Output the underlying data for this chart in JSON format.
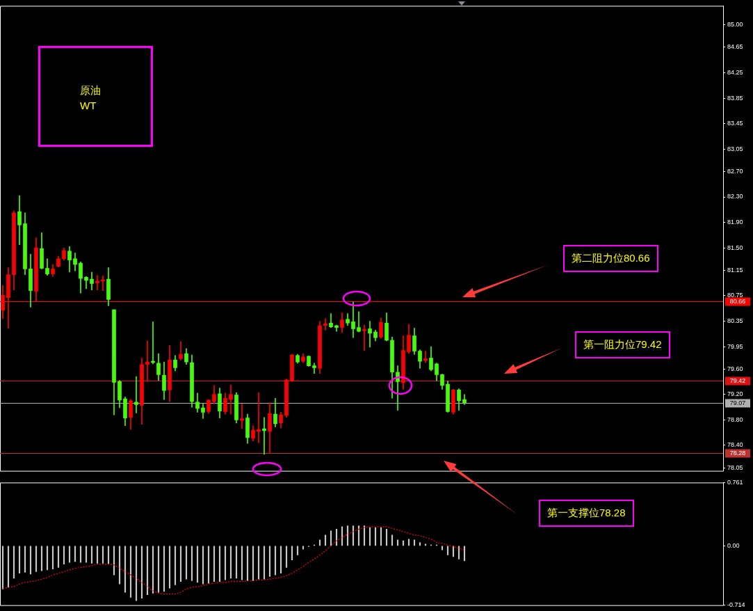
{
  "chart_data": [
    {
      "type": "candlestick",
      "title": "原油\nWT",
      "categories": [
        null,
        null,
        null,
        null,
        null,
        null,
        null,
        null,
        null,
        null,
        null,
        null,
        null,
        null,
        null,
        null,
        null,
        null,
        null,
        null,
        null,
        null,
        null,
        null,
        null,
        null,
        null,
        null,
        null,
        null,
        null,
        null,
        null,
        null,
        null,
        null,
        null,
        null,
        null,
        null,
        null,
        null,
        null,
        null,
        null,
        null,
        null,
        null,
        null,
        null,
        null,
        null,
        null,
        null,
        null,
        null,
        null,
        null,
        null,
        null,
        null,
        null,
        null,
        null,
        null,
        null,
        null,
        null,
        null,
        null,
        null,
        null,
        null,
        null,
        null,
        null,
        null,
        null,
        null,
        null,
        null,
        null,
        null,
        null,
        null,
        null,
        null,
        null,
        null,
        null,
        null,
        null,
        null,
        null,
        null,
        null,
        null,
        null,
        null,
        null,
        null,
        null,
        null,
        null,
        null,
        null,
        null,
        null,
        null,
        null,
        null,
        null,
        null,
        null,
        null,
        null,
        null,
        null,
        null,
        null,
        null,
        null,
        null,
        null,
        null,
        null,
        null,
        null,
        null,
        null
      ],
      "ohlc": [
        [
          80.52,
          80.91,
          80.39,
          80.76
        ],
        [
          80.72,
          81.19,
          80.24,
          81.08
        ],
        [
          81.08,
          82.08,
          80.84,
          82.05
        ],
        [
          82.07,
          82.32,
          81.55,
          81.86
        ],
        [
          81.88,
          82.05,
          81.08,
          81.17
        ],
        [
          81.17,
          81.4,
          80.57,
          80.83
        ],
        [
          80.82,
          81.66,
          80.66,
          81.5
        ],
        [
          81.49,
          81.74,
          81.17,
          81.18
        ],
        [
          81.18,
          81.33,
          81.07,
          81.09
        ],
        [
          81.09,
          81.24,
          81.05,
          81.17
        ],
        [
          81.21,
          81.37,
          81.2,
          81.33
        ],
        [
          81.33,
          81.5,
          81.31,
          81.46
        ],
        [
          81.45,
          81.52,
          81.12,
          81.31
        ],
        [
          81.33,
          81.42,
          81.14,
          81.24
        ],
        [
          81.26,
          81.28,
          80.79,
          81.02
        ],
        [
          81.04,
          81.05,
          80.86,
          80.99
        ],
        [
          81.01,
          81.12,
          80.84,
          80.94
        ],
        [
          80.95,
          81.07,
          80.84,
          80.98
        ],
        [
          80.98,
          81.06,
          80.83,
          81.0
        ],
        [
          81.01,
          81.19,
          80.59,
          80.69
        ],
        [
          80.53,
          80.53,
          78.88,
          79.39
        ],
        [
          79.4,
          79.42,
          78.99,
          79.11
        ],
        [
          79.13,
          79.16,
          78.71,
          78.83
        ],
        [
          78.84,
          79.12,
          78.65,
          79.1
        ],
        [
          79.08,
          79.48,
          78.91,
          79.04
        ],
        [
          79.03,
          79.77,
          78.73,
          79.67
        ],
        [
          79.67,
          80.04,
          79.4,
          79.71
        ],
        [
          79.72,
          80.34,
          79.68,
          79.7
        ],
        [
          79.69,
          79.84,
          79.42,
          79.51
        ],
        [
          79.5,
          79.71,
          79.12,
          79.26
        ],
        [
          79.27,
          79.97,
          79.09,
          79.74
        ],
        [
          79.74,
          79.81,
          79.57,
          79.62
        ],
        [
          79.76,
          80.03,
          79.74,
          79.83
        ],
        [
          79.84,
          79.92,
          79.67,
          79.71
        ],
        [
          79.7,
          79.82,
          79.0,
          79.09
        ],
        [
          79.08,
          79.22,
          78.92,
          78.98
        ],
        [
          78.99,
          79.05,
          78.82,
          78.92
        ],
        [
          78.93,
          79.12,
          78.9,
          79.11
        ],
        [
          79.09,
          79.34,
          79.05,
          79.2
        ],
        [
          79.21,
          79.3,
          78.83,
          78.94
        ],
        [
          78.93,
          79.22,
          78.89,
          79.14
        ],
        [
          79.12,
          79.35,
          78.89,
          79.2
        ],
        [
          79.19,
          79.23,
          78.75,
          78.8
        ],
        [
          78.79,
          79.05,
          78.66,
          78.82
        ],
        [
          78.83,
          78.89,
          78.43,
          78.52
        ],
        [
          78.51,
          78.71,
          78.47,
          78.64
        ],
        [
          78.62,
          79.23,
          78.44,
          78.65
        ],
        [
          78.66,
          78.84,
          78.26,
          78.63
        ],
        [
          78.62,
          79.07,
          78.28,
          78.9
        ],
        [
          78.89,
          79.14,
          78.69,
          78.74
        ],
        [
          78.75,
          78.92,
          78.67,
          78.88
        ],
        [
          78.87,
          79.44,
          78.84,
          79.43
        ],
        [
          79.42,
          79.83,
          79.4,
          79.82
        ],
        [
          79.81,
          79.83,
          79.69,
          79.71
        ],
        [
          79.72,
          79.84,
          79.7,
          79.79
        ],
        [
          79.8,
          79.8,
          79.64,
          79.65
        ],
        [
          79.65,
          79.69,
          79.53,
          79.62
        ],
        [
          79.61,
          80.35,
          79.53,
          80.28
        ],
        [
          80.28,
          80.39,
          80.21,
          80.31
        ],
        [
          80.32,
          80.47,
          80.25,
          80.26
        ],
        [
          80.28,
          80.29,
          80.19,
          80.25
        ],
        [
          80.25,
          80.48,
          80.17,
          80.37
        ],
        [
          80.38,
          80.47,
          80.28,
          80.32
        ],
        [
          80.34,
          80.65,
          80.09,
          80.23
        ],
        [
          80.25,
          80.5,
          80.18,
          80.19
        ],
        [
          80.2,
          80.29,
          79.89,
          80.22
        ],
        [
          80.23,
          80.35,
          79.94,
          80.16
        ],
        [
          80.18,
          80.21,
          80.04,
          80.09
        ],
        [
          80.1,
          80.4,
          80.08,
          80.33
        ],
        [
          80.32,
          80.48,
          80.04,
          80.05
        ],
        [
          80.05,
          80.1,
          79.14,
          79.55
        ],
        [
          79.55,
          79.65,
          78.95,
          79.4
        ],
        [
          79.38,
          80.12,
          79.28,
          79.89
        ],
        [
          79.87,
          80.3,
          79.84,
          80.13
        ],
        [
          80.12,
          80.24,
          79.83,
          79.88
        ],
        [
          79.88,
          79.9,
          79.61,
          79.72
        ],
        [
          79.73,
          79.88,
          79.7,
          79.76
        ],
        [
          79.77,
          79.95,
          79.57,
          79.59
        ],
        [
          79.68,
          79.69,
          79.41,
          79.51
        ],
        [
          79.51,
          79.52,
          79.28,
          79.34
        ],
        [
          79.36,
          79.41,
          78.92,
          78.93
        ],
        [
          78.92,
          79.28,
          78.89,
          79.27
        ],
        [
          79.27,
          79.29,
          78.95,
          79.1
        ],
        [
          79.12,
          79.2,
          79.04,
          79.07
        ],
        null,
        null,
        null,
        null,
        null,
        null,
        null,
        null,
        null,
        null,
        null,
        null,
        null,
        null,
        null,
        null,
        null,
        null,
        null,
        null,
        null,
        null,
        null,
        null,
        null,
        null,
        null,
        null,
        null,
        null,
        null,
        null,
        null,
        null,
        null,
        null,
        null,
        null,
        null,
        null,
        null,
        null,
        null,
        null,
        null,
        null
      ],
      "colors": [
        "#ff0000",
        "#ff0000",
        "#ff0000",
        "#44ff00",
        "#44ff00",
        "#44ff00",
        "#ff0000",
        "#44ff00",
        "#44ff00",
        "#ff0000",
        "#ff0000",
        "#ff0000",
        "#44ff00",
        "#44ff00",
        "#44ff00",
        "#44ff00",
        "#44ff00",
        "#ff0000",
        "#ff0000",
        "#44ff00",
        "#44ff00",
        "#44ff00",
        "#44ff00",
        "#ff0000",
        "#44ff00",
        "#ff0000",
        "#ff0000",
        "#44ff00",
        "#44ff00",
        "#44ff00",
        "#ff0000",
        "#44ff00",
        "#ff0000",
        "#44ff00",
        "#44ff00",
        "#44ff00",
        "#44ff00",
        "#ff0000",
        "#ff0000",
        "#44ff00",
        "#ff0000",
        "#ff0000",
        "#44ff00",
        "#ff0000",
        "#44ff00",
        "#ff0000",
        "#ff0000",
        "#44ff00",
        "#ff0000",
        "#44ff00",
        "#ff0000",
        "#ff0000",
        "#ff0000",
        "#44ff00",
        "#ff0000",
        "#44ff00",
        "#44ff00",
        "#ff0000",
        "#ff0000",
        "#44ff00",
        "#44ff00",
        "#ff0000",
        "#44ff00",
        "#44ff00",
        "#44ff00",
        "#ff0000",
        "#44ff00",
        "#44ff00",
        "#ff0000",
        "#44ff00",
        "#44ff00",
        "#44ff00",
        "#ff0000",
        "#ff0000",
        "#44ff00",
        "#44ff00",
        "#ff0000",
        "#44ff00",
        "#44ff00",
        "#44ff00",
        "#44ff00",
        "#ff0000",
        "#44ff00",
        "#44ff00",
        null,
        null,
        null,
        null,
        null,
        null,
        null,
        null,
        null,
        null,
        null,
        null,
        null,
        null,
        null,
        null,
        null,
        null,
        null,
        null,
        null,
        null,
        null,
        null,
        null,
        null,
        null,
        null,
        null,
        null,
        null,
        null,
        null,
        null,
        null,
        null,
        null,
        null,
        null,
        null,
        null,
        null,
        null,
        null,
        null,
        null
      ],
      "ylim": [
        78.0,
        85.3
      ],
      "yticks": [
        {
          "value": 85,
          "label": "85.00"
        },
        84.65,
        84.25,
        83.85,
        83.45,
        83.05,
        {
          "value": 82.7,
          "label": "82.70"
        },
        {
          "value": 82.3,
          "label": "82.30"
        },
        {
          "value": 81.9,
          "label": "81.90"
        },
        {
          "value": 81.5,
          "label": "81.50"
        },
        81.15,
        80.75,
        80.35,
        79.95,
        {
          "value": 79.6,
          "label": "79.60"
        },
        {
          "value": 79.2,
          "label": "79.20"
        },
        {
          "value": 78.8,
          "label": "78.80"
        },
        {
          "value": 78.4,
          "label": "78.40"
        },
        78.05
      ],
      "tick_labels": "y",
      "ref_lines": [
        {
          "axis": "y",
          "value": 80.66,
          "label": "80.66",
          "color": "#ff0000"
        },
        {
          "axis": "y",
          "value": 79.42,
          "label": "79.42",
          "color": "#e01010"
        },
        {
          "axis": "y",
          "value": 79.07,
          "label": "79.07",
          "color": "#b0b0b0"
        },
        {
          "axis": "y",
          "value": 78.28,
          "label": "78.28",
          "color": "#c03030"
        }
      ],
      "annotations": [
        "第二阻力位80.66",
        "第一阻力位79.42",
        "第一支撑位78.28"
      ]
    },
    {
      "type": "bar",
      "categories": [
        null,
        null,
        null,
        null,
        null,
        null,
        null,
        null,
        null,
        null,
        null,
        null,
        null,
        null,
        null,
        null,
        null,
        null,
        null,
        null,
        null,
        null,
        null,
        null,
        null,
        null,
        null,
        null,
        null,
        null,
        null,
        null,
        null,
        null,
        null,
        null,
        null,
        null,
        null,
        null,
        null,
        null,
        null,
        null,
        null,
        null,
        null,
        null,
        null,
        null,
        null,
        null,
        null,
        null,
        null,
        null,
        null,
        null,
        null,
        null,
        null,
        null,
        null,
        null,
        null,
        null,
        null,
        null,
        null,
        null,
        null,
        null,
        null,
        null,
        null,
        null,
        null,
        null,
        null,
        null,
        null,
        null,
        null,
        null,
        null,
        null,
        null,
        null,
        null,
        null,
        null,
        null,
        null,
        null,
        null,
        null,
        null,
        null,
        null,
        null,
        null,
        null,
        null,
        null,
        null,
        null,
        null,
        null,
        null,
        null,
        null,
        null,
        null,
        null,
        null,
        null,
        null,
        null,
        null,
        null,
        null,
        null,
        null,
        null,
        null,
        null,
        null,
        null,
        null,
        null
      ],
      "series": [
        {
          "type": "bar",
          "color": "#c8c8c8",
          "values": [
            -0.52,
            -0.5,
            -0.39,
            -0.33,
            -0.32,
            -0.34,
            -0.31,
            -0.3,
            -0.29,
            -0.28,
            -0.26,
            -0.22,
            -0.2,
            -0.19,
            -0.2,
            -0.2,
            -0.21,
            -0.21,
            -0.21,
            -0.22,
            -0.35,
            -0.46,
            -0.56,
            -0.62,
            -0.66,
            -0.63,
            -0.59,
            -0.57,
            -0.56,
            -0.55,
            -0.51,
            -0.47,
            -0.43,
            -0.4,
            -0.42,
            -0.44,
            -0.46,
            -0.45,
            -0.43,
            -0.43,
            -0.41,
            -0.39,
            -0.39,
            -0.41,
            -0.42,
            -0.42,
            -0.4,
            -0.4,
            -0.37,
            -0.35,
            -0.33,
            -0.26,
            -0.17,
            -0.11,
            -0.04,
            -0.01,
            0.01,
            0.07,
            0.13,
            0.18,
            0.2,
            0.23,
            0.24,
            0.24,
            0.24,
            0.24,
            0.22,
            0.22,
            0.22,
            0.2,
            0.13,
            0.07,
            0.06,
            0.08,
            0.07,
            0.04,
            0.02,
            0.01,
            0.01,
            -0.05,
            -0.11,
            -0.13,
            -0.16,
            -0.18,
            null,
            null,
            null,
            null,
            null,
            null,
            null,
            null,
            null,
            null,
            null,
            null,
            null,
            null,
            null,
            null,
            null,
            null,
            null,
            null,
            null,
            null,
            null,
            null,
            null,
            null,
            null,
            null,
            null,
            null,
            null,
            null,
            null,
            null,
            null,
            null,
            null,
            null,
            null,
            null,
            null,
            null,
            null,
            null,
            null,
            null
          ]
        },
        {
          "type": "line",
          "color": "#ff0000",
          "line_style": "dotted",
          "values": [
            -0.51,
            -0.5,
            -0.49,
            -0.46,
            -0.44,
            -0.43,
            -0.42,
            -0.4,
            -0.38,
            -0.35,
            -0.33,
            -0.31,
            -0.29,
            -0.27,
            -0.26,
            -0.25,
            -0.24,
            -0.22,
            -0.22,
            -0.22,
            -0.23,
            -0.27,
            -0.31,
            -0.35,
            -0.39,
            -0.44,
            -0.49,
            -0.54,
            -0.57,
            -0.58,
            -0.58,
            -0.58,
            -0.56,
            -0.52,
            -0.5,
            -0.49,
            -0.48,
            -0.46,
            -0.45,
            -0.44,
            -0.44,
            -0.43,
            -0.43,
            -0.43,
            -0.42,
            -0.42,
            -0.41,
            -0.41,
            -0.4,
            -0.39,
            -0.38,
            -0.36,
            -0.33,
            -0.29,
            -0.25,
            -0.2,
            -0.16,
            -0.11,
            -0.06,
            0.0,
            0.06,
            0.1,
            0.14,
            0.17,
            0.2,
            0.22,
            0.23,
            0.23,
            0.23,
            0.23,
            0.21,
            0.19,
            0.17,
            0.15,
            0.13,
            0.12,
            0.1,
            0.08,
            0.04,
            0.03,
            0.01,
            -0.01,
            -0.03,
            -0.05,
            null,
            null,
            null,
            null,
            null,
            null,
            null,
            null,
            null,
            null,
            null,
            null,
            null,
            null,
            null,
            null,
            null,
            null,
            null,
            null,
            null,
            null,
            null,
            null,
            null,
            null,
            null,
            null,
            null,
            null,
            null,
            null,
            null,
            null,
            null,
            null,
            null,
            null,
            null,
            null,
            null,
            null,
            null,
            null,
            null,
            null
          ]
        }
      ],
      "ylim": [
        -0.714,
        0.761
      ],
      "yticks": [
        0.761,
        {
          "value": 0,
          "label": "0.00"
        },
        -0.714
      ],
      "tick_labels": "y"
    }
  ]
}
